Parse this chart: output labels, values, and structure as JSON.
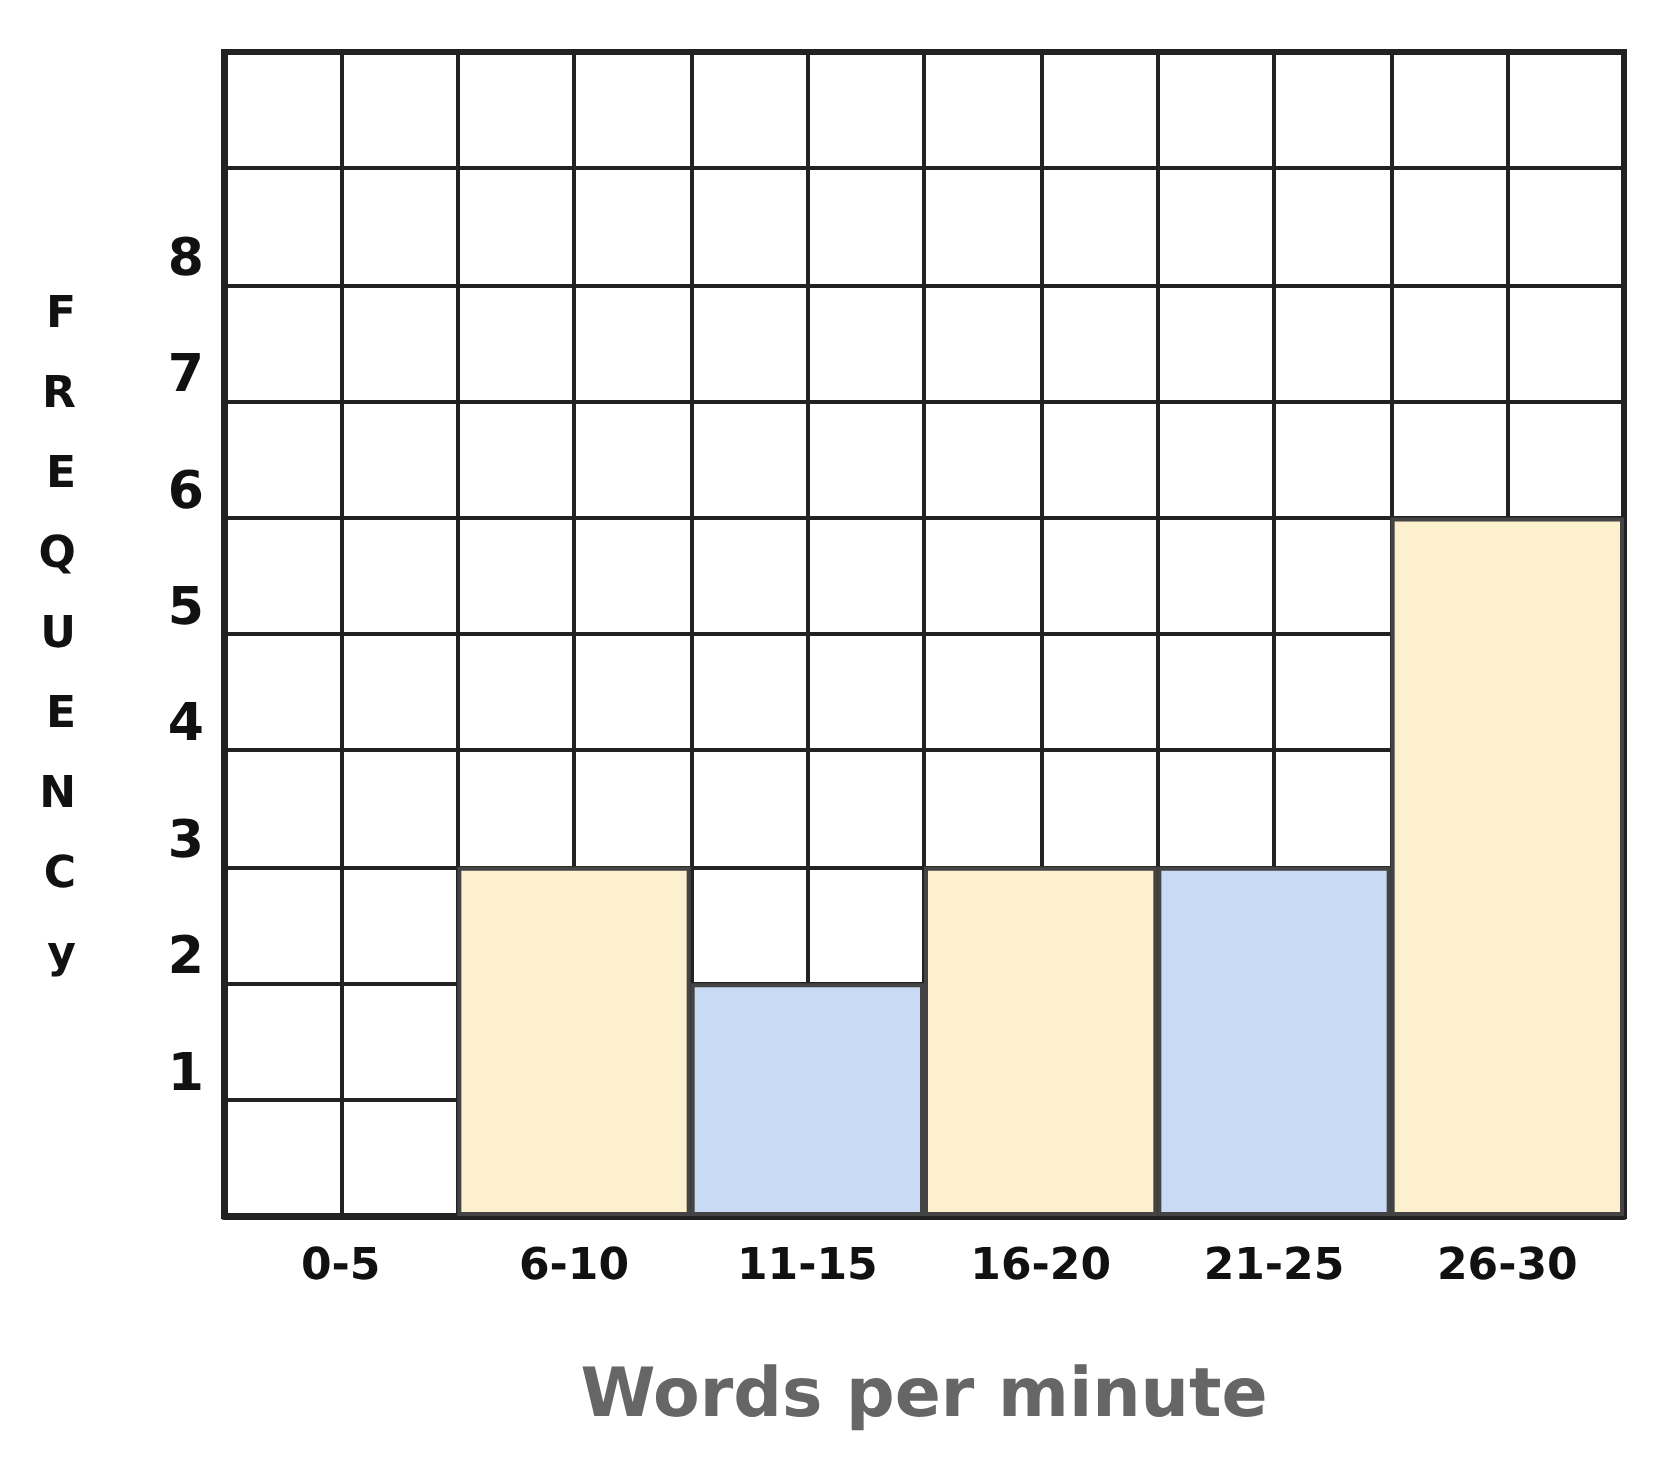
{
  "chart_data": {
    "type": "bar",
    "xlabel": "Words per minute",
    "ylabel": "FREQUENCy",
    "categories": [
      "0-5",
      "6-10",
      "11-15",
      "16-20",
      "21-25",
      "26-30"
    ],
    "values": [
      0,
      3,
      2,
      3,
      3,
      6
    ],
    "colors": [
      null,
      "#fdf0cf",
      "#c9daf5",
      "#fdf0cf",
      "#c9daf5",
      "#fdf0cf"
    ],
    "ylim": [
      0,
      10
    ],
    "yticks": [
      {
        "value": 0,
        "label": null
      },
      1,
      2,
      3,
      4,
      5,
      6,
      7,
      8,
      {
        "value": 9,
        "label": null
      },
      {
        "value": 10,
        "label": null
      }
    ],
    "grid": true
  }
}
